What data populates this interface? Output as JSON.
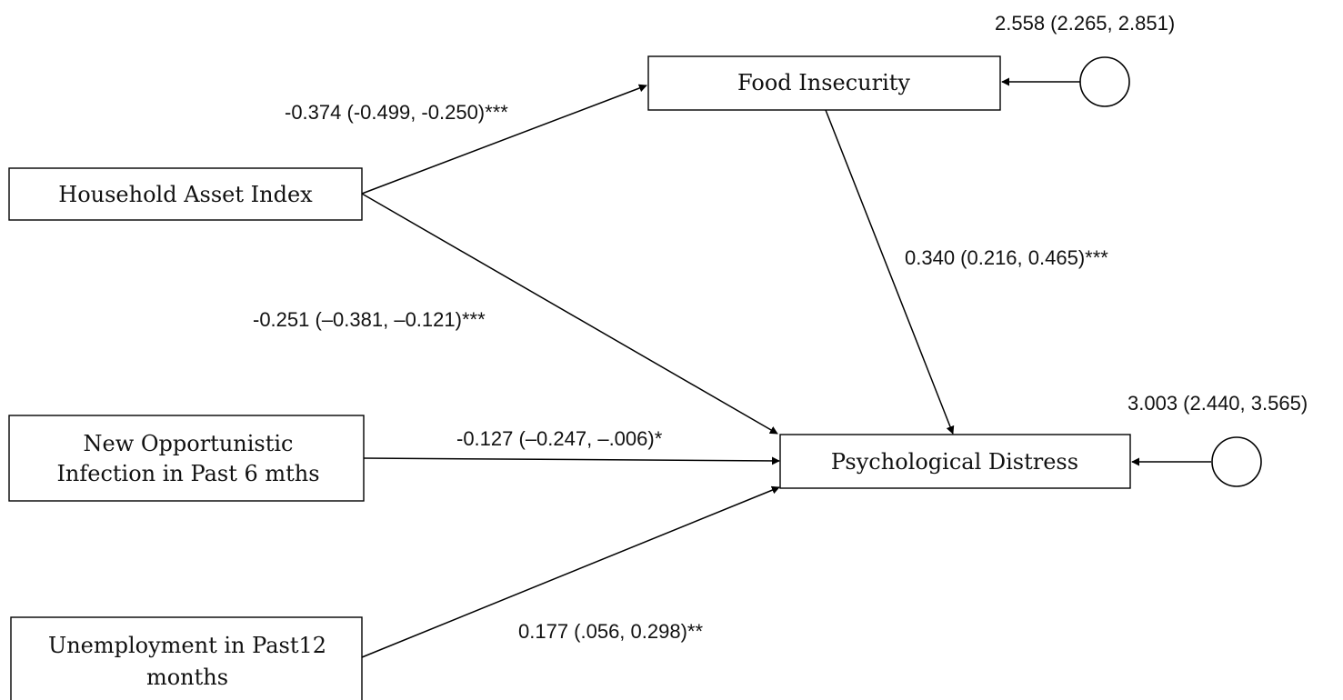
{
  "nodes": {
    "food_insecurity": "Food Insecurity",
    "household_asset_index": "Household Asset Index",
    "new_oi_line1": "New Opportunistic",
    "new_oi_line2": "Infection in Past 6 mths",
    "unemployment_line1": "Unemployment in Past12",
    "unemployment_line2": "months",
    "psychological_distress": "Psychological Distress"
  },
  "paths": {
    "asset_to_food": "-0.374 (-0.499, -0.250)***",
    "food_to_distress": "0.340 (0.216, 0.465)***",
    "asset_to_distress": "-0.251 (–0.381, –0.121)***",
    "oi_to_distress": "-0.127 (–0.247, –.006)*",
    "unemployment_to_distress": "0.177 (.056, 0.298)**"
  },
  "errors": {
    "food_insecurity": "2.558 (2.265, 2.851)",
    "psychological_distress": "3.003 (2.440, 3.565)"
  }
}
